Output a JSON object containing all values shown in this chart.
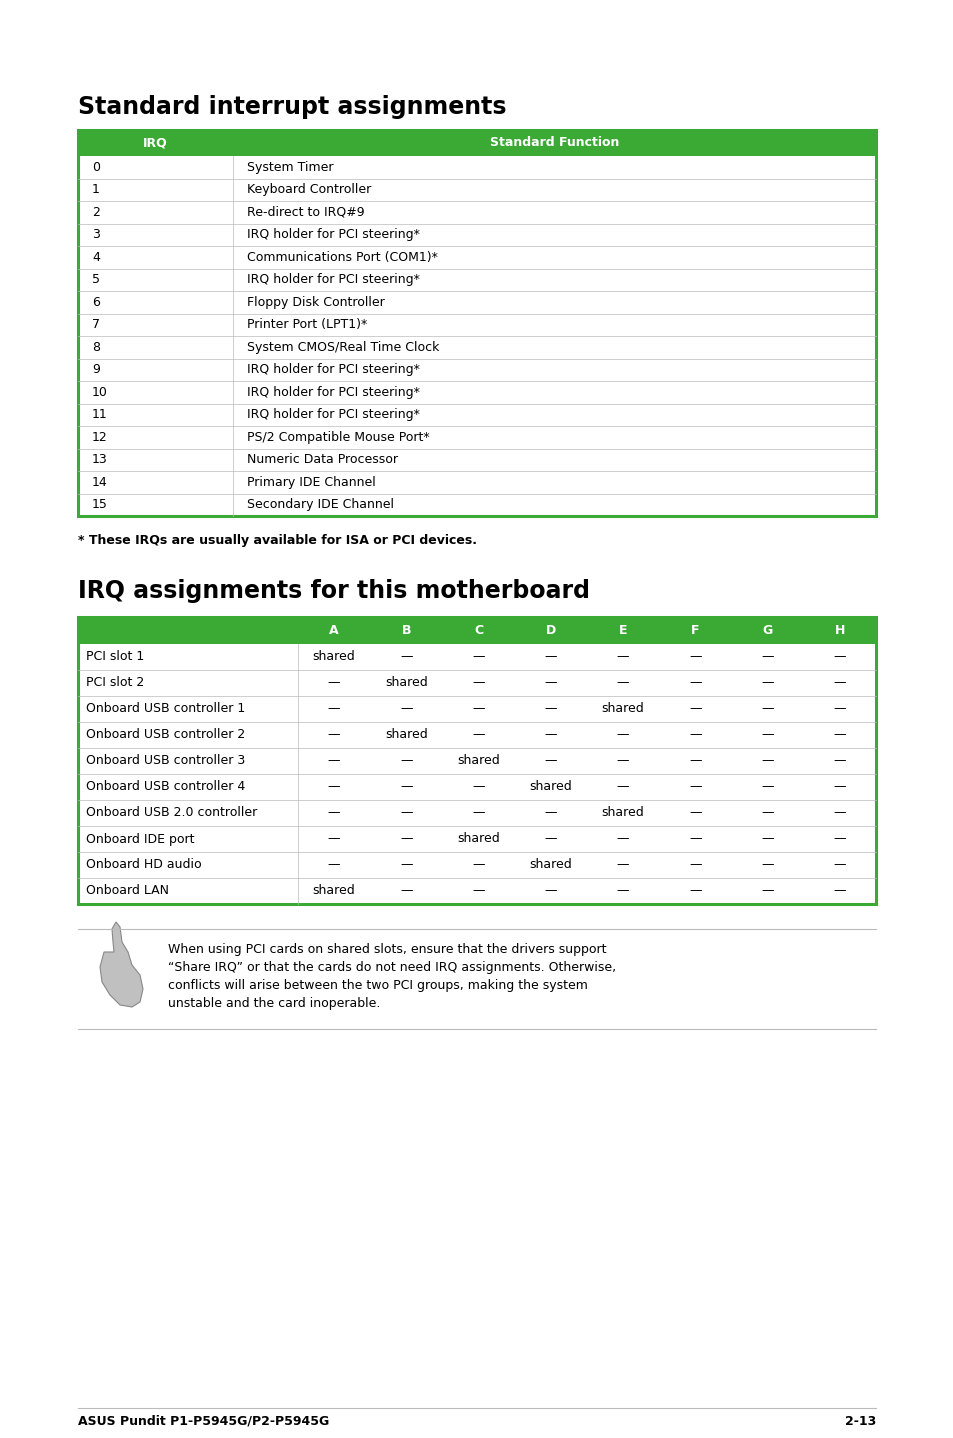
{
  "title1": "Standard interrupt assignments",
  "title2": "IRQ assignments for this motherboard",
  "header_color": "#3aaa35",
  "header_text_color": "#ffffff",
  "table1_headers": [
    "IRQ",
    "Standard Function"
  ],
  "table1_rows": [
    [
      "0",
      "System Timer"
    ],
    [
      "1",
      "Keyboard Controller"
    ],
    [
      "2",
      "Re-direct to IRQ#9"
    ],
    [
      "3",
      "IRQ holder for PCI steering*"
    ],
    [
      "4",
      "Communications Port (COM1)*"
    ],
    [
      "5",
      "IRQ holder for PCI steering*"
    ],
    [
      "6",
      "Floppy Disk Controller"
    ],
    [
      "7",
      "Printer Port (LPT1)*"
    ],
    [
      "8",
      "System CMOS/Real Time Clock"
    ],
    [
      "9",
      "IRQ holder for PCI steering*"
    ],
    [
      "10",
      "IRQ holder for PCI steering*"
    ],
    [
      "11",
      "IRQ holder for PCI steering*"
    ],
    [
      "12",
      "PS/2 Compatible Mouse Port*"
    ],
    [
      "13",
      "Numeric Data Processor"
    ],
    [
      "14",
      "Primary IDE Channel"
    ],
    [
      "15",
      "Secondary IDE Channel"
    ]
  ],
  "footnote": "* These IRQs are usually available for ISA or PCI devices.",
  "table2_col_letters": [
    "A",
    "B",
    "C",
    "D",
    "E",
    "F",
    "G",
    "H"
  ],
  "table2_rows": [
    [
      "PCI slot 1",
      "shared",
      "—",
      "—",
      "—",
      "—",
      "—",
      "—",
      "—"
    ],
    [
      "PCI slot 2",
      "—",
      "shared",
      "—",
      "—",
      "—",
      "—",
      "—",
      "—"
    ],
    [
      "Onboard USB controller 1",
      "—",
      "—",
      "—",
      "—",
      "shared",
      "—",
      "—",
      "—"
    ],
    [
      "Onboard USB controller 2",
      "—",
      "shared",
      "—",
      "—",
      "—",
      "—",
      "—",
      "—"
    ],
    [
      "Onboard USB controller 3",
      "—",
      "—",
      "shared",
      "—",
      "—",
      "—",
      "—",
      "—"
    ],
    [
      "Onboard USB controller 4",
      "—",
      "—",
      "—",
      "shared",
      "—",
      "—",
      "—",
      "—"
    ],
    [
      "Onboard USB 2.0 controller",
      "—",
      "—",
      "—",
      "—",
      "shared",
      "—",
      "—",
      "—"
    ],
    [
      "Onboard IDE port",
      "—",
      "—",
      "shared",
      "—",
      "—",
      "—",
      "—",
      "—"
    ],
    [
      "Onboard HD audio",
      "—",
      "—",
      "—",
      "shared",
      "—",
      "—",
      "—",
      "—"
    ],
    [
      "Onboard LAN",
      "shared",
      "—",
      "—",
      "—",
      "—",
      "—",
      "—",
      "—"
    ]
  ],
  "note_line1": "When using PCI cards on shared slots, ensure that the drivers support",
  "note_line2": "“Share IRQ” or that the cards do not need IRQ assignments. Otherwise,",
  "note_line3": "conflicts will arise between the two PCI groups, making the system",
  "note_line4": "unstable and the card inoperable.",
  "footer_left": "ASUS Pundit P1-P5945G/P2-P5945G",
  "footer_right": "2-13",
  "bg_color": "#ffffff",
  "border_color": "#3aaa35",
  "row_line_color": "#bbbbbb",
  "text_color": "#000000",
  "title1_fontsize": 17,
  "title2_fontsize": 17,
  "header_fontsize": 9,
  "data_fontsize": 9,
  "footnote_fontsize": 9,
  "footer_fontsize": 9
}
